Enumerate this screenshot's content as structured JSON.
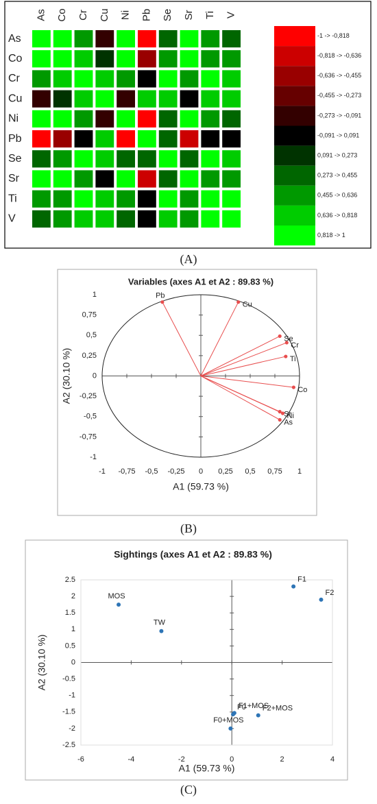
{
  "chart_data": [
    {
      "type": "heatmap",
      "categories": [
        "As",
        "Co",
        "Cr",
        "Cu",
        "Ni",
        "Pb",
        "Se",
        "Sr",
        "Ti",
        "V"
      ],
      "values": [
        [
          1,
          0.95,
          0.6,
          -0.2,
          1,
          -0.85,
          0.3,
          0.95,
          0.6,
          0.4
        ],
        [
          0.95,
          1,
          0.75,
          0.15,
          0.95,
          -0.6,
          0.55,
          0.85,
          0.6,
          0.55
        ],
        [
          0.6,
          0.75,
          1,
          0.7,
          0.6,
          0,
          0.9,
          0.5,
          0.9,
          0.8
        ],
        [
          -0.2,
          0.15,
          0.7,
          1,
          -0.2,
          0.7,
          0.7,
          0,
          0.75,
          0.65
        ],
        [
          1,
          0.95,
          0.6,
          -0.2,
          1,
          -0.85,
          0.4,
          0.95,
          0.6,
          0.45
        ],
        [
          -0.85,
          -0.6,
          0,
          0.7,
          -0.85,
          1,
          0.3,
          -0.8,
          0,
          0
        ],
        [
          0.3,
          0.55,
          0.9,
          0.7,
          0.4,
          0.3,
          1,
          0.4,
          0.85,
          0.75
        ],
        [
          0.95,
          0.85,
          0.5,
          0,
          0.95,
          -0.8,
          0.4,
          1,
          0.6,
          0.55
        ],
        [
          0.6,
          0.6,
          0.9,
          0.75,
          0.6,
          0,
          0.85,
          0.6,
          1,
          0.9
        ],
        [
          0.4,
          0.55,
          0.8,
          0.65,
          0.45,
          0,
          0.75,
          0.55,
          0.9,
          1
        ]
      ],
      "bins": [
        -1,
        -0.818,
        -0.636,
        -0.455,
        -0.273,
        -0.091,
        0.091,
        0.273,
        0.455,
        0.636,
        0.818,
        1
      ],
      "bin_labels": [
        "-1 -> -0,818",
        "-0,818 -> -0,636",
        "-0,636 -> -0,455",
        "-0,455 -> -0,273",
        "-0,273 -> -0,091",
        "-0,091 -> 0,091",
        "0,091 -> 0,273",
        "0,273 -> 0,455",
        "0,455 -> 0,636",
        "0,636 -> 0,818",
        "0,818 -> 1"
      ],
      "bin_colors": [
        "#ff0000",
        "#cc0000",
        "#990000",
        "#660000",
        "#330000",
        "#000000",
        "#003300",
        "#006600",
        "#009900",
        "#00cc00",
        "#00ff00"
      ],
      "panel_label": "(A)"
    },
    {
      "type": "scatter",
      "title": "Variables (axes A1 et A2 : 89.83 %)",
      "x_label": "A1 (59.73 %)",
      "y_label": "A2 (30.10 %)",
      "labels": [
        "Pb",
        "Cu",
        "Se",
        "Cr",
        "Ti",
        "Co",
        "Sr",
        "Ni",
        "As"
      ],
      "x": [
        -0.39,
        0.38,
        0.8,
        0.87,
        0.86,
        0.94,
        0.8,
        0.83,
        0.8
      ],
      "values": [
        0.91,
        0.91,
        0.49,
        0.41,
        0.24,
        -0.14,
        -0.44,
        -0.46,
        -0.54
      ],
      "color": "#e84d4d",
      "vectors": true,
      "circle": true,
      "xlim": [
        -1,
        1
      ],
      "ylim": [
        -1,
        1
      ],
      "xticks": [
        -1,
        {
          "value": -0.75,
          "label": "-0,75"
        },
        {
          "value": -0.5,
          "label": "-0,5"
        },
        {
          "value": -0.25,
          "label": "-0,25"
        },
        0,
        {
          "value": 0.25,
          "label": "0,25"
        },
        {
          "value": 0.5,
          "label": "0,5"
        },
        {
          "value": 0.75,
          "label": "0,75"
        },
        1
      ],
      "yticks": [
        -1,
        {
          "value": -0.75,
          "label": "-0,75"
        },
        {
          "value": -0.5,
          "label": "-0,5"
        },
        {
          "value": -0.25,
          "label": "-0,25"
        },
        0,
        {
          "value": 0.25,
          "label": "0,25"
        },
        {
          "value": 0.5,
          "label": "0,5"
        },
        {
          "value": 0.75,
          "label": "0,75"
        },
        1
      ],
      "panel_label": "(B)"
    },
    {
      "type": "scatter",
      "title": "Sightings (axes A1 et A2 : 89.83 %)",
      "x_label": "A1 (59.73 %)",
      "y_label": "A2 (30.10 %)",
      "labels": [
        "MOS",
        "TW",
        "F1",
        "F2",
        "F1+MOS",
        "F0",
        "F2+MOS",
        "F0+MOS"
      ],
      "x": [
        -4.5,
        -2.8,
        2.45,
        3.55,
        0.1,
        0.05,
        1.05,
        -0.05
      ],
      "values": [
        1.75,
        0.95,
        2.3,
        1.9,
        -1.53,
        -1.57,
        -1.6,
        -2.0
      ],
      "color": "#2e75b6",
      "vectors": false,
      "circle": false,
      "xlim": [
        -6,
        4
      ],
      "ylim": [
        -2.5,
        2.5
      ],
      "xticks": [
        -6,
        -4,
        -2,
        0,
        2,
        4
      ],
      "yticks": [
        -2.5,
        -2,
        -1.5,
        -1,
        -0.5,
        0,
        0.5,
        1,
        1.5,
        2,
        2.5
      ],
      "panel_label": "(C)"
    }
  ]
}
